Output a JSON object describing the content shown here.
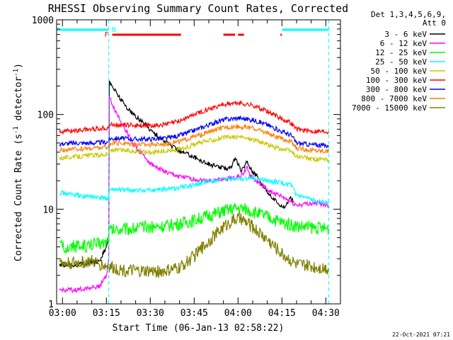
{
  "chart_data": {
    "type": "line",
    "title": "RHESSI Observing Summary Count Rates, Corrected",
    "ylabel": "Corrected Count Rate (s^-1 detector^-1)",
    "ylabel_parts": {
      "main": "Corrected Count Rate (s",
      "exp1": "-1",
      "mid": " detector",
      "exp2": "-1",
      "end": ")"
    },
    "xlabel": "Start Time (06-Jan-13 02:58:22)",
    "footer": "22-Oct-2021 07:21",
    "y_scale": "log",
    "ylim": [
      1,
      1000
    ],
    "y_ticks": [
      1,
      10,
      100,
      1000
    ],
    "xlim_min": [
      -2,
      95
    ],
    "x_ticks": [
      {
        "label": "03:00",
        "min": 0
      },
      {
        "label": "03:15",
        "min": 15
      },
      {
        "label": "03:30",
        "min": 30
      },
      {
        "label": "03:45",
        "min": 45
      },
      {
        "label": "04:00",
        "min": 60
      },
      {
        "label": "04:15",
        "min": 75
      },
      {
        "label": "04:30",
        "min": 90
      }
    ],
    "legend_header": [
      "Det 1,3,4,5,6,9,",
      "Att 0"
    ],
    "series": [
      {
        "name": "3 - 6 keV",
        "color": "#000000",
        "points": [
          [
            -1,
            2.6
          ],
          [
            5,
            2.6
          ],
          [
            9,
            2.7
          ],
          [
            12,
            2.8
          ],
          [
            13,
            3.0
          ],
          [
            14,
            3.5
          ],
          [
            15,
            4
          ],
          [
            15.8,
            5
          ],
          [
            16,
            220
          ],
          [
            17,
            200
          ],
          [
            19,
            160
          ],
          [
            21,
            130
          ],
          [
            23,
            110
          ],
          [
            25,
            95
          ],
          [
            27,
            85
          ],
          [
            29,
            75
          ],
          [
            31,
            65
          ],
          [
            33,
            58
          ],
          [
            35,
            52
          ],
          [
            38,
            45
          ],
          [
            41,
            40
          ],
          [
            44,
            37
          ],
          [
            47,
            33
          ],
          [
            50,
            30
          ],
          [
            53,
            28
          ],
          [
            56,
            27
          ],
          [
            58,
            29
          ],
          [
            59,
            35
          ],
          [
            60,
            30
          ],
          [
            61,
            25
          ],
          [
            62,
            28
          ],
          [
            63,
            32
          ],
          [
            65,
            25
          ],
          [
            67,
            21
          ],
          [
            69,
            17
          ],
          [
            71,
            14
          ],
          [
            73,
            12
          ],
          [
            75,
            11
          ],
          [
            76,
            10.5
          ],
          [
            77,
            12
          ],
          [
            78,
            13
          ],
          [
            79,
            12
          ]
        ]
      },
      {
        "name": "6 - 12 keV",
        "color": "#ff00ff",
        "points": [
          [
            -1,
            1.4
          ],
          [
            5,
            1.4
          ],
          [
            10,
            1.5
          ],
          [
            12,
            1.5
          ],
          [
            13,
            1.6
          ],
          [
            15,
            2
          ],
          [
            15.8,
            3
          ],
          [
            16,
            150
          ],
          [
            17,
            130
          ],
          [
            18,
            110
          ],
          [
            20,
            85
          ],
          [
            22,
            65
          ],
          [
            24,
            50
          ],
          [
            26,
            42
          ],
          [
            28,
            36
          ],
          [
            30,
            31
          ],
          [
            32,
            28
          ],
          [
            34,
            26
          ],
          [
            36,
            24
          ],
          [
            38,
            23
          ],
          [
            40,
            22
          ],
          [
            44,
            21
          ],
          [
            48,
            20
          ],
          [
            52,
            20
          ],
          [
            56,
            21
          ],
          [
            60,
            22
          ],
          [
            62,
            24
          ],
          [
            63,
            28
          ],
          [
            64,
            23
          ],
          [
            66,
            20
          ],
          [
            68,
            18
          ],
          [
            70,
            16
          ],
          [
            72,
            15
          ],
          [
            74,
            14
          ],
          [
            76,
            13
          ],
          [
            78,
            12
          ],
          [
            80,
            11
          ],
          [
            84,
            11.5
          ],
          [
            88,
            11.5
          ],
          [
            91,
            11
          ]
        ]
      },
      {
        "name": "12 - 25 keV",
        "color": "#00ff00",
        "points": [
          [
            -1,
            4.0
          ],
          [
            5,
            4.0
          ],
          [
            10,
            4.2
          ],
          [
            15,
            4.5
          ],
          [
            15.8,
            5
          ],
          [
            16,
            6.0
          ],
          [
            20,
            6.2
          ],
          [
            25,
            6.3
          ],
          [
            30,
            6.5
          ],
          [
            35,
            6.6
          ],
          [
            40,
            7.0
          ],
          [
            45,
            7.6
          ],
          [
            50,
            8.5
          ],
          [
            55,
            9.5
          ],
          [
            58,
            10
          ],
          [
            60,
            10.2
          ],
          [
            62,
            10
          ],
          [
            65,
            9.4
          ],
          [
            70,
            8.3
          ],
          [
            75,
            7.2
          ],
          [
            80,
            6.6
          ],
          [
            85,
            6.4
          ],
          [
            90,
            6.2
          ],
          [
            91,
            6.2
          ]
        ]
      },
      {
        "name": "25 - 50 keV",
        "color": "#00ffff",
        "points": [
          [
            -1,
            15
          ],
          [
            5,
            14
          ],
          [
            10,
            13.5
          ],
          [
            15,
            13
          ],
          [
            15.8,
            13
          ],
          [
            16,
            16
          ],
          [
            20,
            16
          ],
          [
            25,
            15.8
          ],
          [
            30,
            15.8
          ],
          [
            35,
            16.2
          ],
          [
            40,
            17
          ],
          [
            45,
            18
          ],
          [
            50,
            19.5
          ],
          [
            55,
            20.5
          ],
          [
            60,
            21
          ],
          [
            65,
            21
          ],
          [
            70,
            20
          ],
          [
            75,
            19
          ],
          [
            78,
            18
          ],
          [
            80,
            14
          ],
          [
            85,
            12.5
          ],
          [
            90,
            12
          ],
          [
            91,
            12
          ]
        ]
      },
      {
        "name": "50 - 100 keV",
        "color": "#c8c800",
        "points": [
          [
            -1,
            35
          ],
          [
            5,
            36
          ],
          [
            10,
            37
          ],
          [
            15,
            38
          ],
          [
            15.8,
            38
          ],
          [
            16,
            42
          ],
          [
            20,
            42
          ],
          [
            25,
            41
          ],
          [
            30,
            40
          ],
          [
            35,
            41
          ],
          [
            40,
            43
          ],
          [
            45,
            48
          ],
          [
            50,
            53
          ],
          [
            55,
            57
          ],
          [
            60,
            58
          ],
          [
            65,
            55
          ],
          [
            70,
            48
          ],
          [
            75,
            43
          ],
          [
            78,
            41
          ],
          [
            80,
            36
          ],
          [
            85,
            34
          ],
          [
            90,
            33
          ],
          [
            91,
            33
          ]
        ]
      },
      {
        "name": "100 - 300 keV",
        "color": "#ff0000",
        "points": [
          [
            -1,
            66
          ],
          [
            5,
            68
          ],
          [
            10,
            70
          ],
          [
            15,
            72
          ],
          [
            15.8,
            74
          ],
          [
            16,
            78
          ],
          [
            20,
            78
          ],
          [
            25,
            77
          ],
          [
            30,
            76
          ],
          [
            35,
            78
          ],
          [
            40,
            85
          ],
          [
            45,
            100
          ],
          [
            50,
            115
          ],
          [
            55,
            128
          ],
          [
            60,
            132
          ],
          [
            65,
            125
          ],
          [
            70,
            108
          ],
          [
            75,
            90
          ],
          [
            78,
            82
          ],
          [
            80,
            70
          ],
          [
            85,
            67
          ],
          [
            90,
            66
          ],
          [
            91,
            66
          ]
        ]
      },
      {
        "name": "300 - 800 keV",
        "color": "#0000ff",
        "points": [
          [
            -1,
            49
          ],
          [
            5,
            50
          ],
          [
            10,
            50
          ],
          [
            15,
            51
          ],
          [
            15.8,
            52
          ],
          [
            16,
            56
          ],
          [
            20,
            56
          ],
          [
            25,
            55
          ],
          [
            30,
            55
          ],
          [
            35,
            56
          ],
          [
            40,
            60
          ],
          [
            45,
            68
          ],
          [
            50,
            78
          ],
          [
            55,
            88
          ],
          [
            60,
            92
          ],
          [
            65,
            88
          ],
          [
            70,
            78
          ],
          [
            75,
            66
          ],
          [
            78,
            61
          ],
          [
            80,
            50
          ],
          [
            85,
            48
          ],
          [
            90,
            47
          ],
          [
            91,
            47
          ]
        ]
      },
      {
        "name": "800 - 7000 keV",
        "color": "#ff8000",
        "points": [
          [
            -1,
            42
          ],
          [
            5,
            43
          ],
          [
            10,
            44
          ],
          [
            15,
            45
          ],
          [
            15.8,
            46
          ],
          [
            16,
            50
          ],
          [
            20,
            50
          ],
          [
            25,
            49
          ],
          [
            30,
            48
          ],
          [
            35,
            49
          ],
          [
            40,
            52
          ],
          [
            45,
            58
          ],
          [
            50,
            65
          ],
          [
            55,
            73
          ],
          [
            60,
            75
          ],
          [
            65,
            72
          ],
          [
            70,
            64
          ],
          [
            75,
            55
          ],
          [
            78,
            52
          ],
          [
            80,
            44
          ],
          [
            85,
            42
          ],
          [
            90,
            41
          ],
          [
            91,
            41
          ]
        ]
      },
      {
        "name": "7000 - 15000 keV",
        "color": "#808000",
        "points": [
          [
            -1,
            2.7
          ],
          [
            5,
            2.7
          ],
          [
            10,
            2.8
          ],
          [
            15,
            2.5
          ],
          [
            20,
            2.3
          ],
          [
            25,
            2.2
          ],
          [
            30,
            2.2
          ],
          [
            35,
            2.2
          ],
          [
            40,
            2.4
          ],
          [
            45,
            3.2
          ],
          [
            50,
            4.6
          ],
          [
            55,
            6.5
          ],
          [
            58,
            7.6
          ],
          [
            60,
            8
          ],
          [
            62,
            7.5
          ],
          [
            65,
            6.5
          ],
          [
            70,
            4.8
          ],
          [
            75,
            3.4
          ],
          [
            78,
            2.9
          ],
          [
            80,
            2.6
          ],
          [
            85,
            2.5
          ],
          [
            90,
            2.4
          ],
          [
            91,
            2.4
          ]
        ]
      }
    ],
    "markers": {
      "N": {
        "segments": [
          [
            -2,
            15.8
          ],
          [
            75,
            91
          ]
        ]
      },
      "F": {
        "segments": [
          [
            17,
            40.5
          ],
          [
            55,
            59
          ],
          [
            60,
            62
          ],
          [
            74.5,
            75
          ]
        ]
      },
      "dashed_verticals_min": [
        15.8,
        91
      ]
    }
  }
}
